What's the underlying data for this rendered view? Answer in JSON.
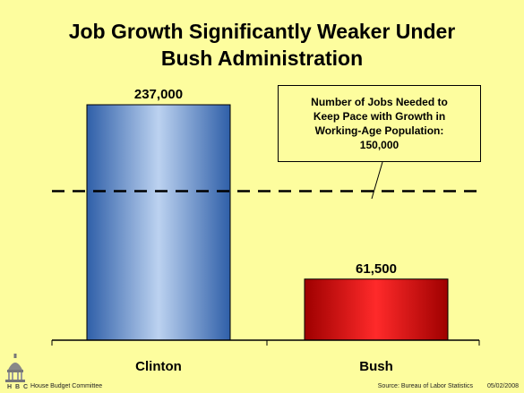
{
  "title_line1": "Job Growth Significantly Weaker Under",
  "title_line2": "Bush Administration",
  "callout": {
    "line1": "Number of Jobs Needed to",
    "line2": "Keep Pace with Growth in",
    "line3": "Working-Age Population:",
    "line4": "150,000"
  },
  "footer": {
    "logo_text": "H B C",
    "organization": "House Budget Committee",
    "source": "Source: Bureau of Labor Statistics",
    "date": "05/02/2008"
  },
  "colors": {
    "background": "#fdfd9e",
    "clinton_bar": "#5b8fd6",
    "bush_bar": "#d10000",
    "reference_line": "#000000"
  },
  "icons": [
    "capitol-dome-icon"
  ],
  "chart_data": {
    "type": "bar",
    "categories": [
      "Clinton",
      "Bush"
    ],
    "values": [
      237000,
      61500
    ],
    "value_labels": [
      "237,000",
      "61,500"
    ],
    "reference_line": {
      "value": 150000,
      "style": "dashed"
    },
    "ylim": [
      0,
      260000
    ],
    "grid": false,
    "legend": "none"
  }
}
